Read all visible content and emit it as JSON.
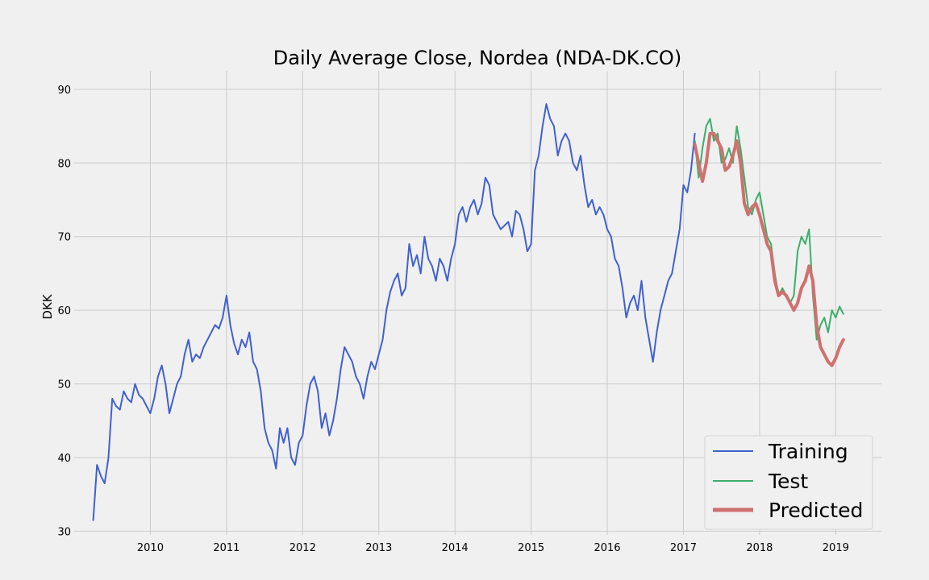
{
  "chart_data": {
    "type": "line",
    "title": "Daily Average Close, Nordea (NDA-DK.CO)",
    "xlabel": "",
    "ylabel": "DKK",
    "xlim": [
      2009.0,
      2019.6
    ],
    "ylim": [
      29.5,
      92.5
    ],
    "grid": true,
    "legend_position": "bottom-right",
    "x_ticks": [
      2010,
      2011,
      2012,
      2013,
      2014,
      2015,
      2016,
      2017,
      2018,
      2019
    ],
    "x_tick_labels": [
      "2010",
      "2011",
      "2012",
      "2013",
      "2014",
      "2015",
      "2016",
      "2017",
      "2018",
      "2019"
    ],
    "y_ticks": [
      30,
      40,
      50,
      60,
      70,
      80,
      90
    ],
    "y_tick_labels": [
      "30",
      "40",
      "50",
      "60",
      "70",
      "80",
      "90"
    ],
    "series": [
      {
        "name": "Training",
        "color": "#4060d0",
        "x": [
          2009.25,
          2009.3,
          2009.35,
          2009.4,
          2009.45,
          2009.5,
          2009.55,
          2009.6,
          2009.65,
          2009.7,
          2009.75,
          2009.8,
          2009.85,
          2009.9,
          2009.95,
          2010.0,
          2010.05,
          2010.1,
          2010.15,
          2010.2,
          2010.25,
          2010.3,
          2010.35,
          2010.4,
          2010.45,
          2010.5,
          2010.55,
          2010.6,
          2010.65,
          2010.7,
          2010.75,
          2010.8,
          2010.85,
          2010.9,
          2010.95,
          2011.0,
          2011.05,
          2011.1,
          2011.15,
          2011.2,
          2011.25,
          2011.3,
          2011.35,
          2011.4,
          2011.45,
          2011.5,
          2011.55,
          2011.6,
          2011.65,
          2011.7,
          2011.75,
          2011.8,
          2011.85,
          2011.9,
          2011.95,
          2012.0,
          2012.05,
          2012.1,
          2012.15,
          2012.2,
          2012.25,
          2012.3,
          2012.35,
          2012.4,
          2012.45,
          2012.5,
          2012.55,
          2012.6,
          2012.65,
          2012.7,
          2012.75,
          2012.8,
          2012.85,
          2012.9,
          2012.95,
          2013.0,
          2013.05,
          2013.1,
          2013.15,
          2013.2,
          2013.25,
          2013.3,
          2013.35,
          2013.4,
          2013.45,
          2013.5,
          2013.55,
          2013.6,
          2013.65,
          2013.7,
          2013.75,
          2013.8,
          2013.85,
          2013.9,
          2013.95,
          2014.0,
          2014.05,
          2014.1,
          2014.15,
          2014.2,
          2014.25,
          2014.3,
          2014.35,
          2014.4,
          2014.45,
          2014.5,
          2014.55,
          2014.6,
          2014.65,
          2014.7,
          2014.75,
          2014.8,
          2014.85,
          2014.9,
          2014.95,
          2015.0,
          2015.05,
          2015.1,
          2015.15,
          2015.2,
          2015.25,
          2015.3,
          2015.35,
          2015.4,
          2015.45,
          2015.5,
          2015.55,
          2015.6,
          2015.65,
          2015.7,
          2015.75,
          2015.8,
          2015.85,
          2015.9,
          2015.95,
          2016.0,
          2016.05,
          2016.1,
          2016.15,
          2016.2,
          2016.25,
          2016.3,
          2016.35,
          2016.4,
          2016.45,
          2016.5,
          2016.55,
          2016.6,
          2016.65,
          2016.7,
          2016.75,
          2016.8,
          2016.85,
          2016.9,
          2016.95,
          2017.0,
          2017.05,
          2017.1,
          2017.15
        ],
        "values": [
          31.5,
          39,
          37.5,
          36.5,
          40,
          48,
          47,
          46.5,
          49,
          48,
          47.5,
          50,
          48.5,
          48,
          47,
          46,
          48,
          51,
          52.5,
          50,
          46,
          48,
          50,
          51,
          54,
          56,
          53,
          54,
          53.5,
          55,
          56,
          57,
          58,
          57.5,
          59,
          62,
          58,
          55.5,
          54,
          56,
          55,
          57,
          53,
          52,
          49,
          44,
          42,
          41,
          38.5,
          44,
          42,
          44,
          40,
          39,
          42,
          43,
          47,
          50,
          51,
          49,
          44,
          46,
          43,
          45,
          48,
          52,
          55,
          54,
          53,
          51,
          50,
          48,
          51,
          53,
          52,
          54,
          56,
          60,
          62.5,
          64,
          65,
          62,
          63,
          69,
          66,
          67.5,
          65,
          70,
          67,
          66,
          64,
          67,
          66,
          64,
          67,
          69,
          73,
          74,
          72,
          74,
          75,
          73,
          74.5,
          78,
          77,
          73,
          72,
          71,
          71.5,
          72,
          70,
          73.5,
          73,
          71,
          68,
          69,
          79,
          81,
          85,
          88,
          86,
          85,
          81,
          83,
          84,
          83,
          80,
          79,
          81,
          77,
          74,
          75,
          73,
          74,
          73,
          71,
          70,
          67,
          66,
          63,
          59,
          61,
          62,
          60,
          64,
          59,
          56,
          53,
          57,
          60,
          62,
          64,
          65,
          68,
          71,
          77,
          76,
          79,
          84
        ]
      },
      {
        "name": "Test",
        "color": "#3cae6a",
        "x": [
          2017.15,
          2017.2,
          2017.25,
          2017.3,
          2017.35,
          2017.4,
          2017.45,
          2017.5,
          2017.55,
          2017.6,
          2017.65,
          2017.7,
          2017.75,
          2017.8,
          2017.85,
          2017.9,
          2017.95,
          2018.0,
          2018.05,
          2018.1,
          2018.15,
          2018.2,
          2018.25,
          2018.3,
          2018.35,
          2018.4,
          2018.45,
          2018.5,
          2018.55,
          2018.6,
          2018.65,
          2018.7,
          2018.75,
          2018.8,
          2018.85,
          2018.9,
          2018.95,
          2019.0,
          2019.05,
          2019.1
        ],
        "values": [
          83,
          78,
          82,
          85,
          86,
          83,
          84,
          80,
          80.5,
          82,
          80,
          85,
          82,
          78,
          74,
          73,
          75,
          76,
          73,
          70,
          69,
          65,
          62,
          63,
          62,
          61,
          62,
          68,
          70,
          69,
          71,
          62,
          56,
          58,
          59,
          57,
          60,
          59,
          60.5,
          59.5
        ]
      },
      {
        "name": "Predicted",
        "color": "#d0706f",
        "x": [
          2017.15,
          2017.2,
          2017.25,
          2017.3,
          2017.35,
          2017.4,
          2017.45,
          2017.5,
          2017.55,
          2017.6,
          2017.65,
          2017.7,
          2017.75,
          2017.8,
          2017.85,
          2017.9,
          2017.95,
          2018.0,
          2018.05,
          2018.1,
          2018.15,
          2018.2,
          2018.25,
          2018.3,
          2018.35,
          2018.4,
          2018.45,
          2018.5,
          2018.55,
          2018.6,
          2018.65,
          2018.7,
          2018.75,
          2018.8,
          2018.85,
          2018.9,
          2018.95,
          2019.0,
          2019.05,
          2019.1
        ],
        "values": [
          82.5,
          80,
          77.5,
          80,
          84,
          84,
          83,
          82,
          79,
          79.5,
          81,
          83,
          80,
          74.5,
          73,
          74,
          74.5,
          73,
          71,
          69,
          68,
          64,
          62,
          62.5,
          62,
          61,
          60,
          61,
          63,
          64,
          66,
          64,
          58,
          55,
          54,
          53,
          52.5,
          53.5,
          55,
          56
        ]
      }
    ]
  }
}
